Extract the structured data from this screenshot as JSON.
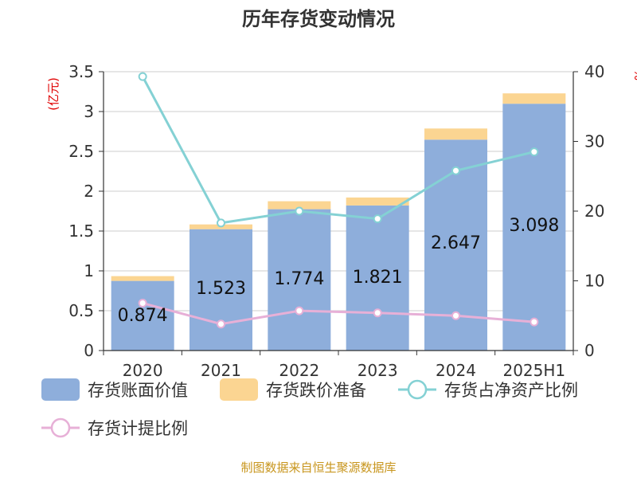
{
  "title": "历年存货变动情况",
  "source": "制图数据来自恒生聚源数据库",
  "colors": {
    "book_value": "#8eaedb",
    "impairment": "#fbd592",
    "ratio_net_assets": "#84d1d4",
    "provision_ratio": "#e7b0d7"
  },
  "chart_data": {
    "type": "bar",
    "categories": [
      "2020",
      "2021",
      "2022",
      "2023",
      "2024",
      "2025H1"
    ],
    "y_left": {
      "unit": "(亿元)",
      "range": [
        0,
        3.5
      ],
      "ticks": [
        "0",
        "0.5",
        "1",
        "1.5",
        "2",
        "2.5",
        "3",
        "3.5"
      ],
      "tick_values": [
        0,
        0.5,
        1,
        1.5,
        2,
        2.5,
        3,
        3.5
      ]
    },
    "y_right": {
      "unit": "%",
      "range": [
        0,
        40
      ],
      "ticks": [
        "0",
        "10",
        "20",
        "30",
        "40"
      ],
      "tick_values": [
        0,
        10,
        20,
        30,
        40
      ]
    },
    "series": [
      {
        "name": "存货账面价值",
        "kind": "bar",
        "axis": "left",
        "values": [
          0.874,
          1.523,
          1.774,
          1.821,
          2.647,
          3.098
        ],
        "labels": [
          "0.874",
          "1.523",
          "1.774",
          "1.821",
          "2.647",
          "3.098"
        ]
      },
      {
        "name": "存货跌价准备",
        "kind": "bar-stack",
        "axis": "left",
        "values": [
          0.06,
          0.06,
          0.1,
          0.1,
          0.14,
          0.13
        ]
      },
      {
        "name": "存货占净资产比例",
        "kind": "line",
        "axis": "right",
        "values": [
          39.3,
          18.3,
          20.0,
          18.9,
          25.8,
          28.5
        ]
      },
      {
        "name": "存货计提比例",
        "kind": "line",
        "axis": "right",
        "values": [
          6.8,
          3.8,
          5.7,
          5.4,
          5.0,
          4.1
        ]
      }
    ],
    "grid": true,
    "legend_position": "bottom"
  }
}
